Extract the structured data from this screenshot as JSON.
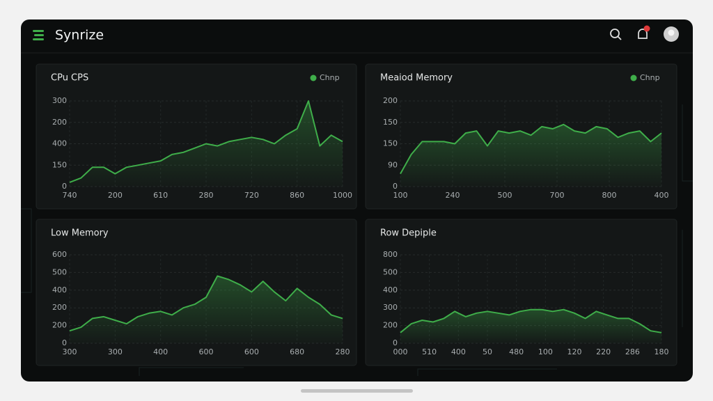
{
  "header": {
    "brand": "Synrize"
  },
  "chart_data": [
    {
      "type": "line",
      "title": "CPu CPS",
      "legend": "Chnp",
      "color": "#3fae4a",
      "ylim": [
        0,
        4
      ],
      "yticks": [
        0,
        {
          "value": 1,
          "label": "150"
        },
        {
          "value": 2,
          "label": "400"
        },
        {
          "value": 3,
          "label": "200"
        },
        {
          "value": 4,
          "label": "300"
        }
      ],
      "xlim": [
        0,
        6
      ],
      "xticks": [
        {
          "value": 0,
          "label": "740"
        },
        {
          "value": 1,
          "label": "200"
        },
        {
          "value": 2,
          "label": "610"
        },
        {
          "value": 3,
          "label": "280"
        },
        {
          "value": 4,
          "label": "720"
        },
        {
          "value": 5,
          "label": "860"
        },
        {
          "value": 6,
          "label": "1000"
        }
      ],
      "values": [
        0.2,
        0.4,
        0.9,
        0.9,
        0.6,
        0.9,
        1.0,
        1.1,
        1.2,
        1.5,
        1.6,
        1.8,
        2.0,
        1.9,
        2.1,
        2.2,
        2.3,
        2.2,
        2.0,
        2.4,
        2.7,
        4.0,
        1.9,
        2.4,
        2.1
      ]
    },
    {
      "type": "line",
      "title": "Meaiod Memory",
      "legend": "Chnp",
      "color": "#3fae4a",
      "ylim": [
        0,
        4
      ],
      "yticks": [
        0,
        {
          "value": 1,
          "label": "90"
        },
        {
          "value": 2,
          "label": "150"
        },
        {
          "value": 3,
          "label": "150"
        },
        {
          "value": 4,
          "label": "200"
        }
      ],
      "xlim": [
        0,
        5
      ],
      "xticks": [
        {
          "value": 0,
          "label": "100"
        },
        {
          "value": 1,
          "label": "240"
        },
        {
          "value": 2,
          "label": "500"
        },
        {
          "value": 3,
          "label": "700"
        },
        {
          "value": 4,
          "label": "800"
        },
        {
          "value": 5,
          "label": "400"
        }
      ],
      "values": [
        0.6,
        1.5,
        2.1,
        2.1,
        2.1,
        2.0,
        2.5,
        2.6,
        1.9,
        2.6,
        2.5,
        2.6,
        2.4,
        2.8,
        2.7,
        2.9,
        2.6,
        2.5,
        2.8,
        2.7,
        2.3,
        2.5,
        2.6,
        2.1,
        2.5
      ]
    },
    {
      "type": "line",
      "title": "Low Memory",
      "color": "#3fae4a",
      "ylim": [
        0,
        5
      ],
      "yticks": [
        0,
        {
          "value": 1,
          "label": "200"
        },
        {
          "value": 2,
          "label": "200"
        },
        {
          "value": 3,
          "label": "400"
        },
        {
          "value": 4,
          "label": "500"
        },
        {
          "value": 5,
          "label": "600"
        }
      ],
      "xlim": [
        0,
        6
      ],
      "xticks": [
        {
          "value": 0,
          "label": "300"
        },
        {
          "value": 1,
          "label": "300"
        },
        {
          "value": 2,
          "label": "400"
        },
        {
          "value": 3,
          "label": "600"
        },
        {
          "value": 4,
          "label": "600"
        },
        {
          "value": 5,
          "label": "680"
        },
        {
          "value": 6,
          "label": "280"
        }
      ],
      "values": [
        0.7,
        0.9,
        1.4,
        1.5,
        1.3,
        1.1,
        1.5,
        1.7,
        1.8,
        1.6,
        2.0,
        2.2,
        2.6,
        3.8,
        3.6,
        3.3,
        2.9,
        3.5,
        2.9,
        2.4,
        3.1,
        2.6,
        2.2,
        1.6,
        1.4
      ]
    },
    {
      "type": "line",
      "title": "Row Depiple",
      "color": "#3fae4a",
      "ylim": [
        0,
        5
      ],
      "yticks": [
        0,
        {
          "value": 1,
          "label": "200"
        },
        {
          "value": 2,
          "label": "300"
        },
        {
          "value": 3,
          "label": "400"
        },
        {
          "value": 4,
          "label": "500"
        },
        {
          "value": 5,
          "label": "800"
        }
      ],
      "xlim": [
        0,
        9
      ],
      "xticks": [
        {
          "value": 0,
          "label": "000"
        },
        {
          "value": 1,
          "label": "510"
        },
        {
          "value": 2,
          "label": "400"
        },
        {
          "value": 3,
          "label": "50"
        },
        {
          "value": 4,
          "label": "480"
        },
        {
          "value": 5,
          "label": "100"
        },
        {
          "value": 6,
          "label": "120"
        },
        {
          "value": 7,
          "label": "220"
        },
        {
          "value": 8,
          "label": "286"
        },
        {
          "value": 9,
          "label": "180"
        }
      ],
      "values": [
        0.6,
        1.1,
        1.3,
        1.2,
        1.4,
        1.8,
        1.5,
        1.7,
        1.8,
        1.7,
        1.6,
        1.8,
        1.9,
        1.9,
        1.8,
        1.9,
        1.7,
        1.4,
        1.8,
        1.6,
        1.4,
        1.4,
        1.1,
        0.7,
        0.6
      ]
    }
  ]
}
